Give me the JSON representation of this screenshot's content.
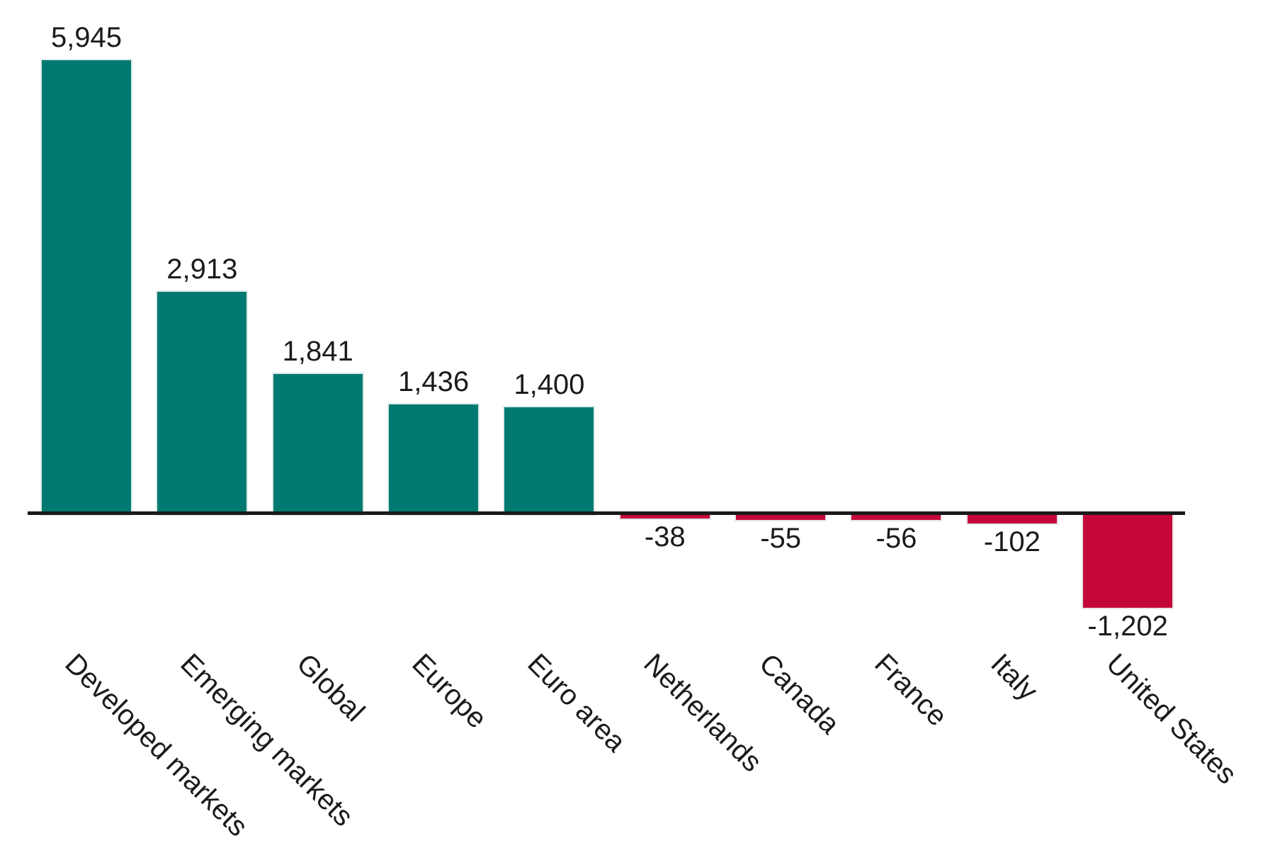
{
  "chart_data": {
    "type": "bar",
    "categories": [
      "Developed markets",
      "Emerging markets",
      "Global",
      "Europe",
      "Euro area",
      "Netherlands",
      "Canada",
      "France",
      "Italy",
      "United States"
    ],
    "values": [
      5945,
      2913,
      1841,
      1436,
      1400,
      -38,
      -55,
      -56,
      -102,
      -1202
    ],
    "value_labels": [
      "5,945",
      "2,913",
      "1,841",
      "1,436",
      "1,400",
      "-38",
      "-55",
      "-56",
      "-102",
      "-1,202"
    ],
    "title": "",
    "xlabel": "",
    "ylabel": "",
    "ylim": [
      -1202,
      5945
    ],
    "grid": false,
    "legend": null,
    "bar_label_position": "outside-end",
    "category_label_rotation_deg": 45,
    "positive_color": "#007A71",
    "negative_color": "#C40638",
    "axis_color": "#1A1A1A",
    "text_color": "#1B1B1B",
    "background_color": "#FFFFFF"
  }
}
